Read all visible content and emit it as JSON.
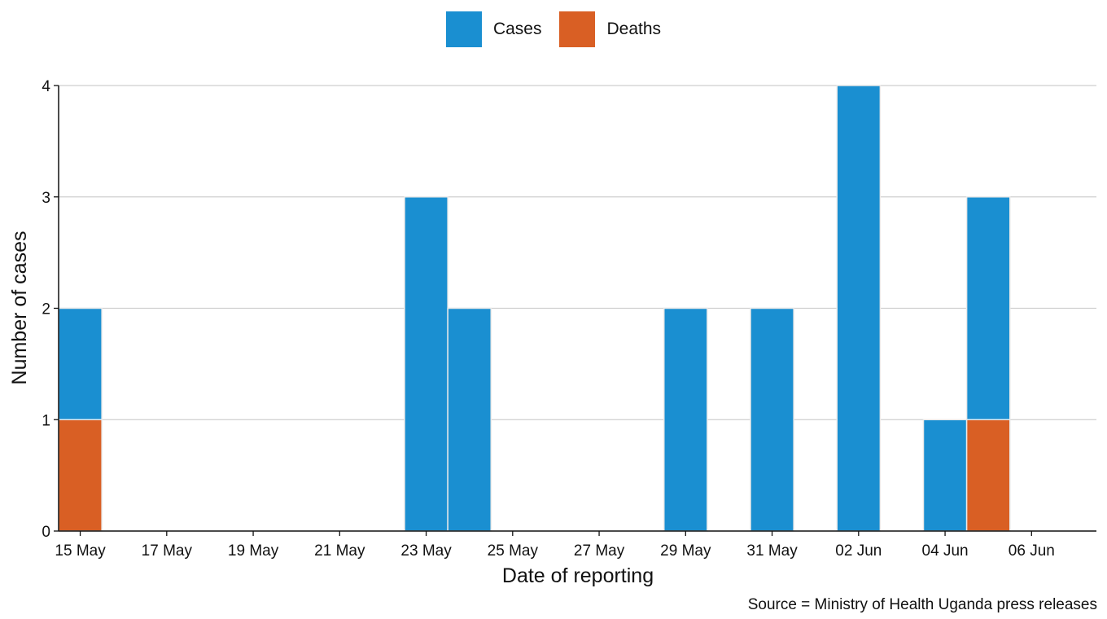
{
  "chart_data": {
    "type": "bar",
    "stacked": true,
    "title": "",
    "xlabel": "Date of reporting",
    "ylabel": "Number of cases",
    "ylim": [
      0,
      4
    ],
    "yticks": [
      0,
      1,
      2,
      3,
      4
    ],
    "xticks": [
      "15 May",
      "17 May",
      "19 May",
      "21 May",
      "23 May",
      "25 May",
      "27 May",
      "29 May",
      "31 May",
      "02 Jun",
      "04 Jun",
      "06 Jun"
    ],
    "xrange": [
      "2022-05-15",
      "2022-06-08"
    ],
    "grid": "horizontal",
    "legend_position": "top",
    "dates": [
      "2022-05-15",
      "2022-05-23",
      "2022-05-24",
      "2022-05-29",
      "2022-05-31",
      "2022-06-02",
      "2022-06-04",
      "2022-06-05"
    ],
    "series": [
      {
        "name": "Cases",
        "color": "#1a8fd1",
        "values": [
          1,
          3,
          2,
          2,
          2,
          4,
          1,
          2
        ]
      },
      {
        "name": "Deaths",
        "color": "#d95f24",
        "values": [
          1,
          0,
          0,
          0,
          0,
          0,
          0,
          1
        ]
      }
    ],
    "source": "Source = Ministry of Health Uganda press releases"
  }
}
